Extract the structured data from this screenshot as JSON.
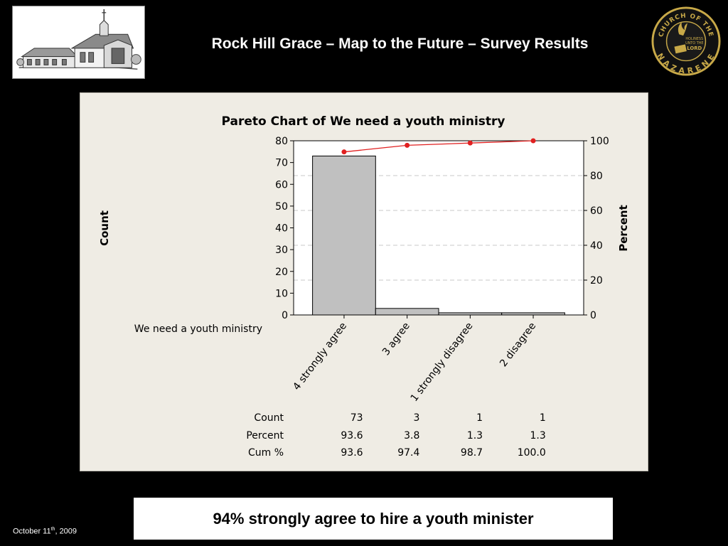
{
  "slide": {
    "title": "Rock Hill Grace – Map to the Future – Survey Results",
    "caption": "94% strongly agree to hire a youth minister",
    "date_prefix": "October 11",
    "date_suffix": "th",
    "date_year": ", 2009"
  },
  "logos": {
    "seal_ring_top": "CHURCH OF THE",
    "seal_ring_bottom": "NAZARENE",
    "seal_center": [
      "HOLINESS",
      "UNTO THE",
      "LORD"
    ]
  },
  "colors": {
    "background": "#000000",
    "panel": "#efece4",
    "bar_fill": "#c0c0c0",
    "line": "#e02020",
    "seal_gold": "#c8a948"
  },
  "chart_data": {
    "type": "bar",
    "title": "Pareto Chart of We need a youth ministry",
    "xlabel": "",
    "ylabel": "Count",
    "y2label": "Percent",
    "row_label": "We need a youth ministry",
    "categories": [
      "4 strongly agree",
      "3 agree",
      "1 strongly disagree",
      "2 disagree"
    ],
    "series": [
      {
        "name": "Count",
        "values": [
          73,
          3,
          1,
          1
        ]
      },
      {
        "name": "Cum %",
        "values": [
          93.6,
          97.4,
          98.7,
          100.0
        ],
        "type": "line",
        "axis": "right"
      }
    ],
    "ylim": [
      0,
      80
    ],
    "y2lim": [
      0,
      100
    ],
    "y_ticks": [
      0,
      10,
      20,
      30,
      40,
      50,
      60,
      70,
      80
    ],
    "y2_ticks": [
      0,
      20,
      40,
      60,
      80,
      100
    ],
    "grid": "horizontal dashed",
    "table": {
      "row_labels": [
        "Count",
        "Percent",
        "Cum %"
      ],
      "rows": [
        [
          "73",
          "3",
          "1",
          "1"
        ],
        [
          "93.6",
          "3.8",
          "1.3",
          "1.3"
        ],
        [
          "93.6",
          "97.4",
          "98.7",
          "100.0"
        ]
      ]
    }
  }
}
